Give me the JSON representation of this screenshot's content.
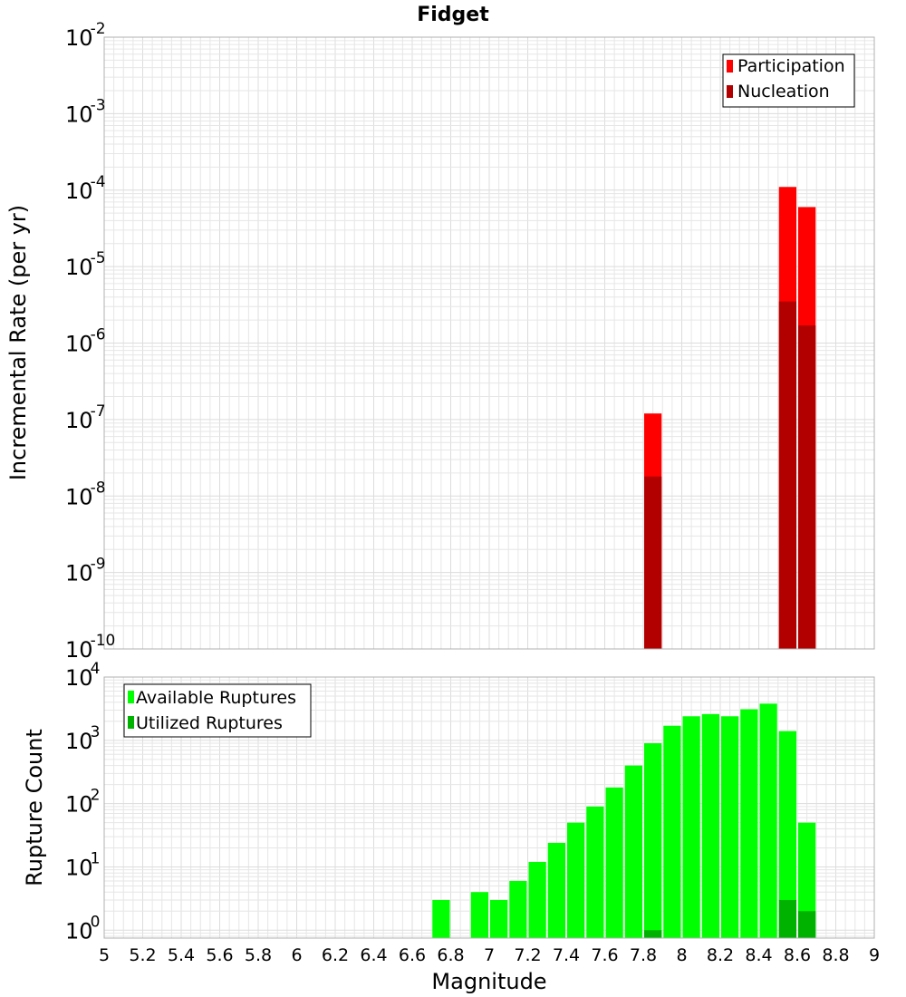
{
  "chart_data": [
    {
      "type": "bar",
      "title": "Fidget",
      "xlabel": "",
      "ylabel": "Incremental Rate (per yr)",
      "yscale": "log",
      "xlim": [
        5,
        9
      ],
      "ylim": [
        1e-10,
        0.01
      ],
      "y_tick_exponents": [
        "-10",
        "-9",
        "-8",
        "-7",
        "-6",
        "-5",
        "-4",
        "-3",
        "-2"
      ],
      "grid": true,
      "legend_position": "top-right",
      "bar_width": 0.1,
      "series": [
        {
          "name": "Participation",
          "color": "#ff0000",
          "x": [
            7.85,
            8.55,
            8.65
          ],
          "values": [
            1.2e-07,
            0.00011,
            6e-05
          ]
        },
        {
          "name": "Nucleation",
          "color": "#b20000",
          "x": [
            7.85,
            8.55,
            8.65
          ],
          "values": [
            1.8e-08,
            3.5e-06,
            1.7e-06
          ]
        }
      ]
    },
    {
      "type": "bar",
      "xlabel": "Magnitude",
      "ylabel": "Rupture Count",
      "yscale": "log",
      "xlim": [
        5,
        9
      ],
      "ylim": [
        0.75,
        10000
      ],
      "y_tick_exponents": [
        "0",
        "1",
        "2",
        "3",
        "4"
      ],
      "x_ticks": [
        "5",
        "5.2",
        "5.4",
        "5.6",
        "5.8",
        "6",
        "6.2",
        "6.4",
        "6.6",
        "6.8",
        "7",
        "7.2",
        "7.4",
        "7.6",
        "7.8",
        "8",
        "8.2",
        "8.4",
        "8.6",
        "8.8",
        "9"
      ],
      "grid": true,
      "legend_position": "top-left",
      "bar_width": 0.1,
      "series": [
        {
          "name": "Available Ruptures",
          "color": "#00ff00",
          "x": [
            6.75,
            6.95,
            7.05,
            7.15,
            7.25,
            7.35,
            7.45,
            7.55,
            7.65,
            7.75,
            7.85,
            7.95,
            8.05,
            8.15,
            8.25,
            8.35,
            8.45,
            8.55,
            8.65
          ],
          "values": [
            3,
            4,
            3,
            6,
            12,
            24,
            50,
            90,
            180,
            400,
            900,
            1700,
            2400,
            2600,
            2400,
            3100,
            3800,
            1400,
            50
          ]
        },
        {
          "name": "Utilized Ruptures",
          "color": "#00b200",
          "x": [
            7.85,
            8.55,
            8.65
          ],
          "values": [
            1,
            3,
            2
          ]
        }
      ]
    }
  ]
}
